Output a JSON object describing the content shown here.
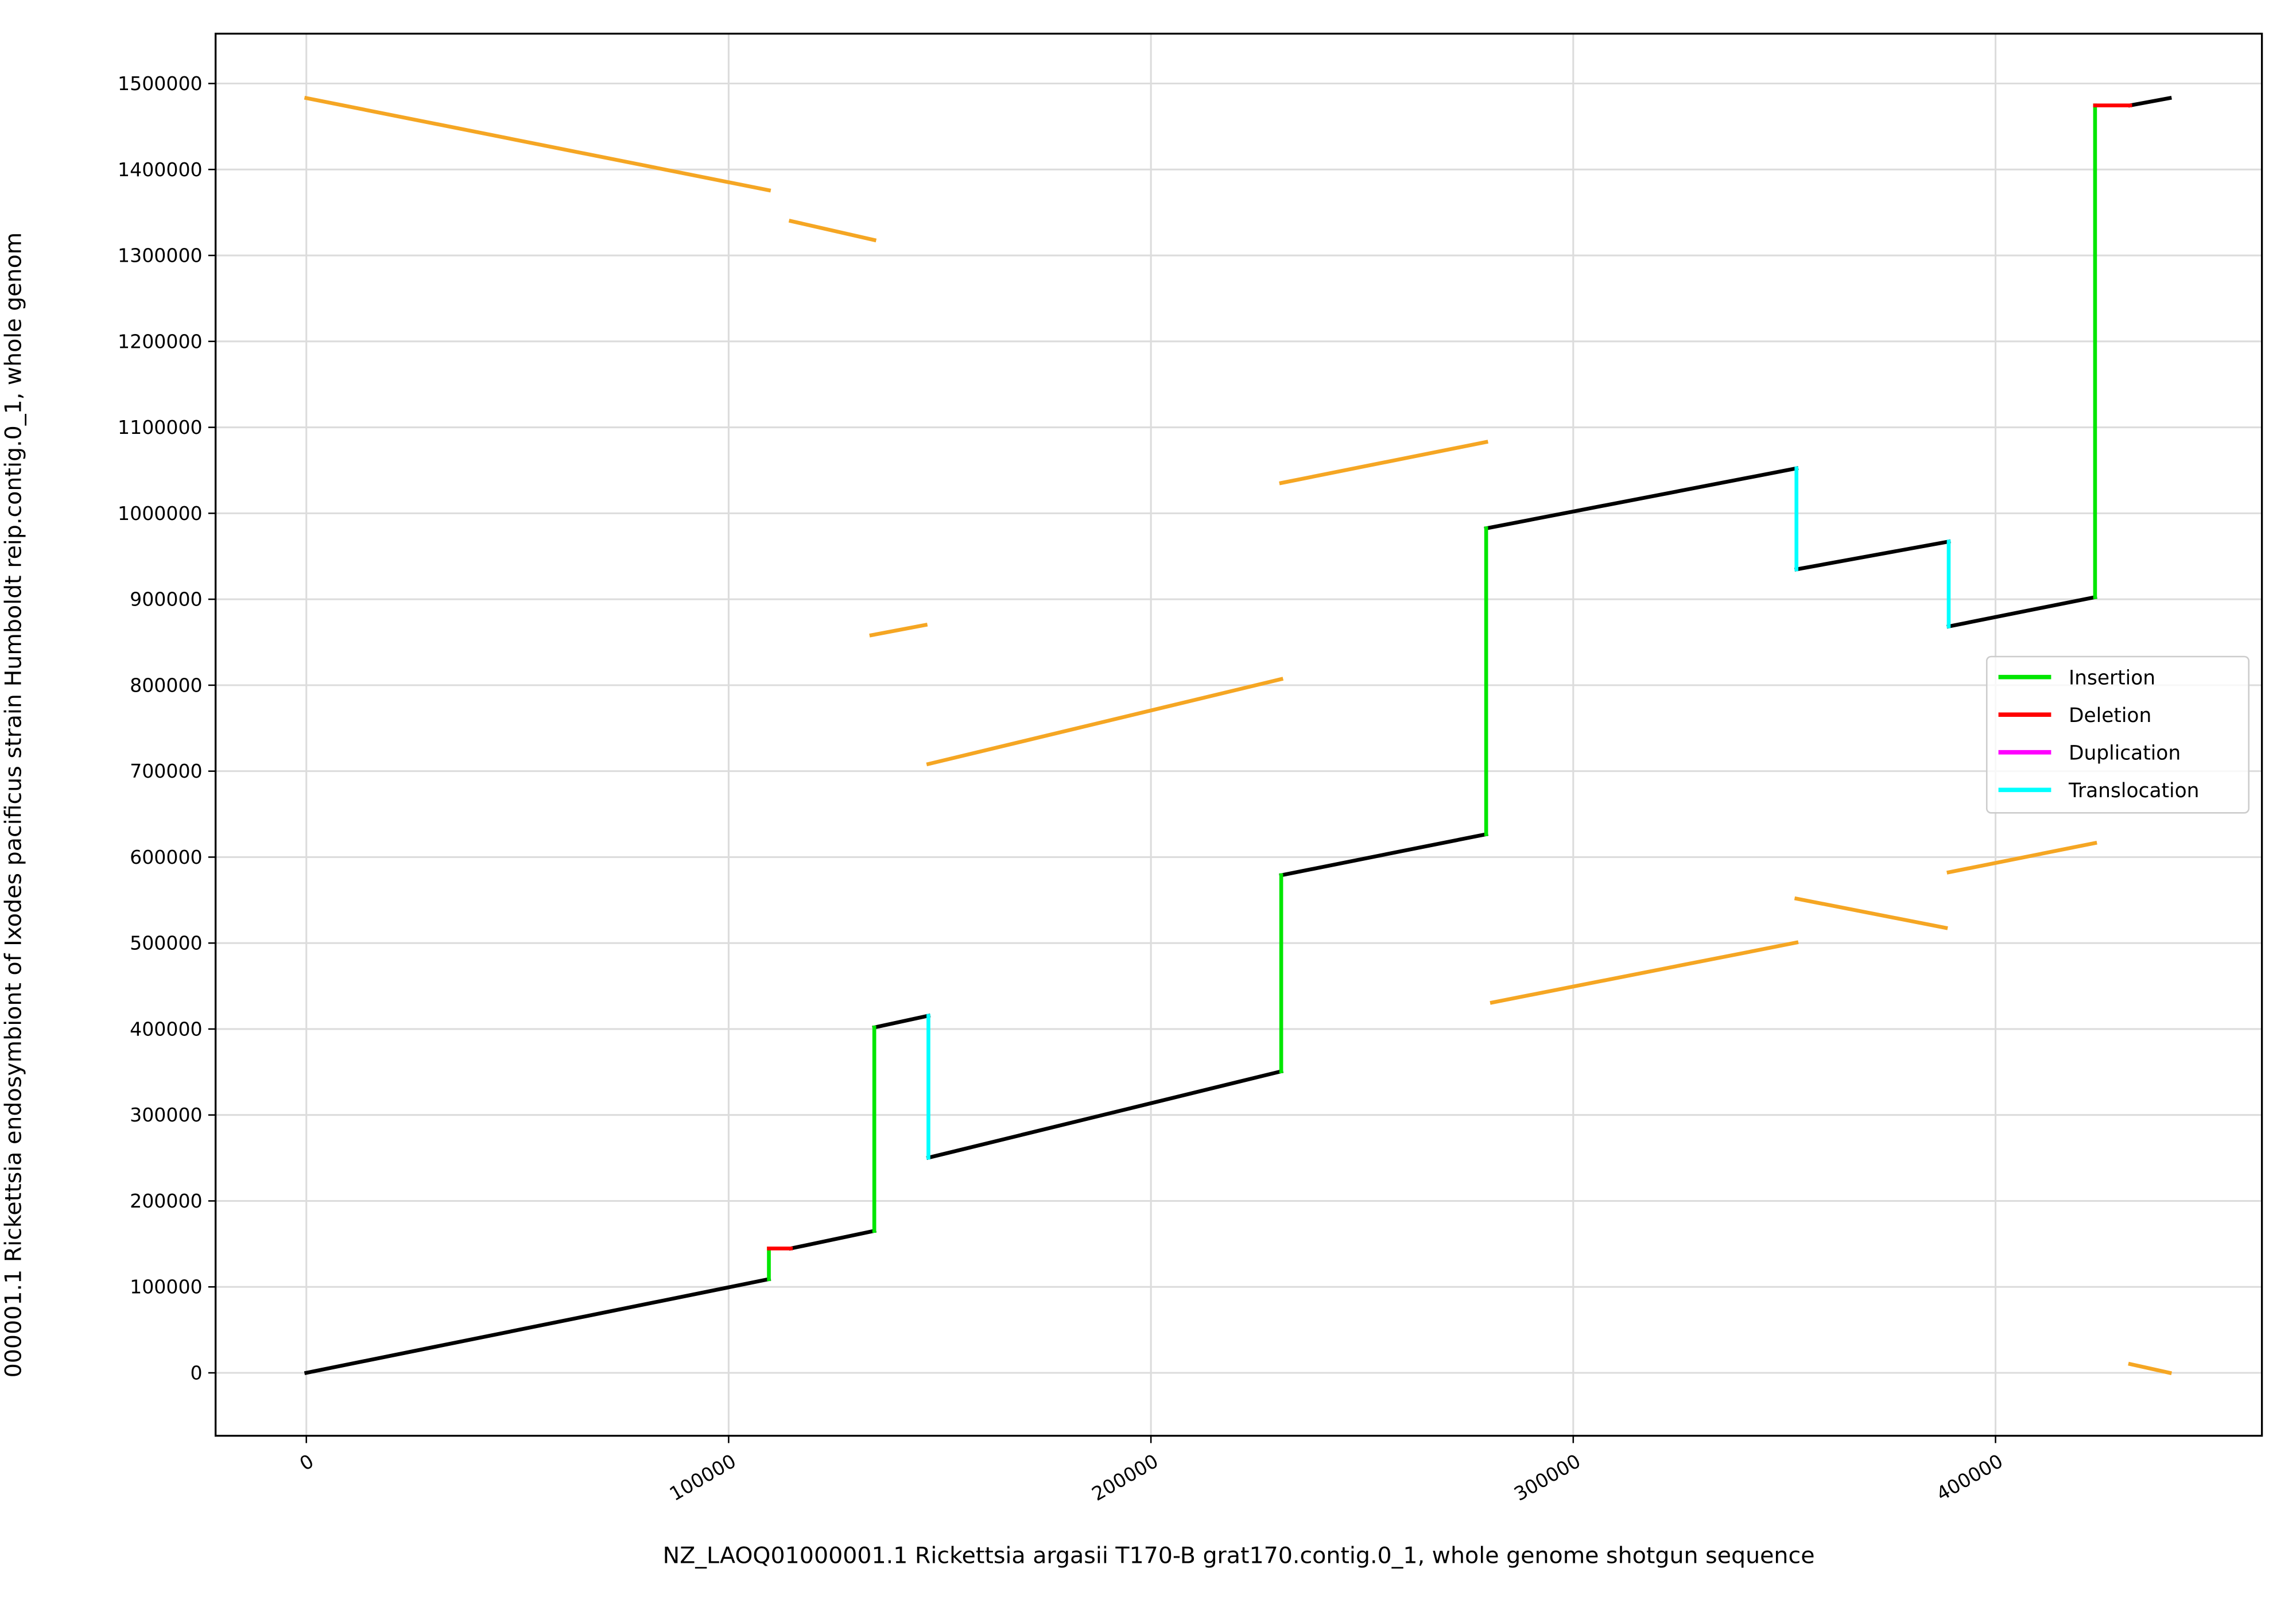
{
  "chart_data": {
    "type": "line",
    "xlabel": "NZ_LAOQ01000001.1 Rickettsia argasii T170-B grat170.contig.0_1, whole genome shotgun sequence",
    "ylabel": "000001.1 Rickettsia endosymbiont of Ixodes pacificus strain Humboldt reip.contig.0_1, whole genom",
    "xlim": [
      -21490,
      463080
    ],
    "ylim": [
      -73200,
      1558000
    ],
    "xticks": [
      0,
      100000,
      200000,
      300000,
      400000
    ],
    "yticks": [
      0,
      100000,
      200000,
      300000,
      400000,
      500000,
      600000,
      700000,
      800000,
      900000,
      1000000,
      1100000,
      1200000,
      1300000,
      1400000,
      1500000
    ],
    "grid": true,
    "legend": "center right",
    "series": [
      {
        "color": "#f5a623",
        "x": [
          0,
          109530,
          null,
          114730,
          134490,
          null,
          133800,
          146620,
          null,
          147310,
          230850,
          null,
          230850,
          279380,
          null,
          280760,
          352860,
          null,
          352860,
          388220,
          null,
          388910,
          423570,
          null,
          431890,
          441250
        ],
        "y": [
          1483060,
          1375800,
          null,
          1340030,
          1317890,
          null,
          858160,
          870080,
          null,
          708330,
          807080,
          null,
          1035250,
          1082930,
          null,
          430790,
          500600,
          null,
          551680,
          517620,
          null,
          582330,
          616380,
          null,
          10220,
          0
        ]
      },
      {
        "color": "#000000",
        "x": [
          0,
          109530,
          null,
          114730,
          134490,
          null,
          134490,
          147310,
          null,
          147310,
          230850,
          null,
          230850,
          279380,
          null,
          279380,
          352860,
          null,
          352860,
          388910,
          null,
          388910,
          423570,
          null,
          431890,
          441250
        ],
        "y": [
          0,
          108970,
          null,
          144730,
          165160,
          null,
          401840,
          415460,
          null,
          250300,
          350760,
          null,
          578920,
          626600,
          null,
          982460,
          1052270,
          null,
          934780,
          967130,
          null,
          868380,
          902430,
          null,
          1474540,
          1483060
        ]
      },
      {
        "name": "Insertion",
        "color": "#00e600",
        "x": [
          109530,
          109530,
          null,
          134490,
          134490,
          null,
          230850,
          230850,
          null,
          279380,
          279380,
          null,
          423570,
          423570
        ],
        "y": [
          108970,
          144730,
          null,
          165160,
          401840,
          null,
          350760,
          578920,
          null,
          626600,
          982460,
          null,
          902430,
          1474540
        ]
      },
      {
        "name": "Deletion",
        "color": "#ff0000",
        "x": [
          109530,
          114730,
          null,
          423570,
          431890
        ],
        "y": [
          144730,
          144730,
          null,
          1474540,
          1474540
        ]
      },
      {
        "name": "Duplication",
        "color": "#ff00ff",
        "x": [],
        "y": []
      },
      {
        "name": "Translocation",
        "color": "#00ffff",
        "x": [
          147310,
          147310,
          null,
          352860,
          352860,
          null,
          388910,
          388910
        ],
        "y": [
          415460,
          250300,
          null,
          1052270,
          934780,
          null,
          967130,
          868380
        ]
      }
    ]
  }
}
